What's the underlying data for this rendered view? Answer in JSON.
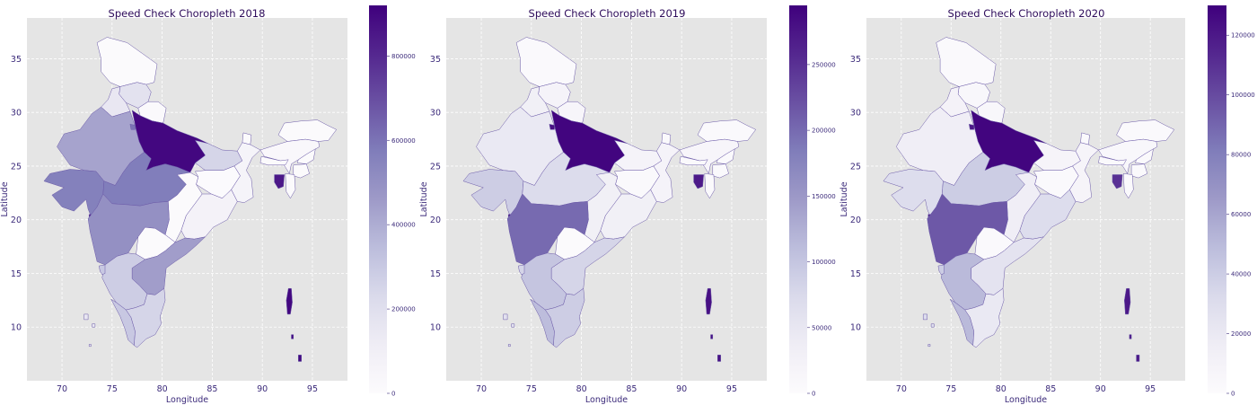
{
  "chart_data": [
    {
      "type": "choropleth",
      "title": "Speed Check Choropleth 2018",
      "xlabel": "Longitude",
      "ylabel": "Latitude",
      "xticks": [
        70,
        75,
        80,
        85,
        90,
        95
      ],
      "yticks": [
        10,
        15,
        20,
        25,
        30,
        35
      ],
      "xlim": [
        66.5,
        98.5
      ],
      "ylim": [
        5.0,
        38.8
      ],
      "grid": true,
      "colormap": "Purples",
      "colorbar": {
        "min": 0,
        "max": 920000,
        "ticks": [
          0,
          200000,
          400000,
          600000,
          800000
        ]
      },
      "regions": [
        {
          "name": "Jammu & Kashmir",
          "value": 8000
        },
        {
          "name": "Himachal Pradesh",
          "value": 180000
        },
        {
          "name": "Punjab",
          "value": 150000
        },
        {
          "name": "Uttarakhand",
          "value": 15000
        },
        {
          "name": "Rajasthan",
          "value": 430000
        },
        {
          "name": "Uttar Pradesh",
          "value": 900000
        },
        {
          "name": "Delhi",
          "value": 600000
        },
        {
          "name": "Gujarat",
          "value": 560000
        },
        {
          "name": "Daman & Diu",
          "value": 850000
        },
        {
          "name": "Madhya Pradesh",
          "value": 570000
        },
        {
          "name": "Bihar",
          "value": 250000
        },
        {
          "name": "Jharkhand",
          "value": 5000
        },
        {
          "name": "West Bengal",
          "value": 60000
        },
        {
          "name": "Chhattisgarh",
          "value": 10000
        },
        {
          "name": "Odisha",
          "value": 70000
        },
        {
          "name": "Maharashtra",
          "value": 500000
        },
        {
          "name": "Telangana",
          "value": 12000
        },
        {
          "name": "Andhra Pradesh",
          "value": 450000
        },
        {
          "name": "Karnataka",
          "value": 280000
        },
        {
          "name": "Goa",
          "value": 300000
        },
        {
          "name": "Kerala",
          "value": 300000
        },
        {
          "name": "Tamil Nadu",
          "value": 250000
        },
        {
          "name": "Sikkim",
          "value": 12000
        },
        {
          "name": "Arunachal Pradesh",
          "value": 8000
        },
        {
          "name": "Assam",
          "value": 30000
        },
        {
          "name": "Meghalaya",
          "value": 8000
        },
        {
          "name": "Nagaland",
          "value": 8000
        },
        {
          "name": "Manipur",
          "value": 8000
        },
        {
          "name": "Mizoram",
          "value": 10000
        },
        {
          "name": "Tripura",
          "value": 850000
        },
        {
          "name": "Lakshadweep",
          "value": 150000
        },
        {
          "name": "Andaman & Nicobar",
          "value": 900000
        }
      ]
    },
    {
      "type": "choropleth",
      "title": "Speed Check Choropleth 2019",
      "xlabel": "Longitude",
      "ylabel": "Latitude",
      "xticks": [
        70,
        75,
        80,
        85,
        90,
        95
      ],
      "yticks": [
        10,
        15,
        20,
        25,
        30,
        35
      ],
      "xlim": [
        66.5,
        98.5
      ],
      "ylim": [
        5.0,
        38.8
      ],
      "grid": true,
      "colormap": "Purples",
      "colorbar": {
        "min": 0,
        "max": 295000,
        "ticks": [
          0,
          50000,
          100000,
          150000,
          200000,
          250000
        ]
      },
      "regions": [
        {
          "name": "Jammu & Kashmir",
          "value": 5000
        },
        {
          "name": "Himachal Pradesh",
          "value": 20000
        },
        {
          "name": "Punjab",
          "value": 30000
        },
        {
          "name": "Uttarakhand",
          "value": 15000
        },
        {
          "name": "Rajasthan",
          "value": 45000
        },
        {
          "name": "Uttar Pradesh",
          "value": 290000
        },
        {
          "name": "Delhi",
          "value": 280000
        },
        {
          "name": "Gujarat",
          "value": 90000
        },
        {
          "name": "Daman & Diu",
          "value": 280000
        },
        {
          "name": "Madhya Pradesh",
          "value": 70000
        },
        {
          "name": "Bihar",
          "value": 20000
        },
        {
          "name": "Jharkhand",
          "value": 5000
        },
        {
          "name": "West Bengal",
          "value": 20000
        },
        {
          "name": "Chhattisgarh",
          "value": 30000
        },
        {
          "name": "Odisha",
          "value": 30000
        },
        {
          "name": "Maharashtra",
          "value": 200000
        },
        {
          "name": "Telangana",
          "value": 3000
        },
        {
          "name": "Andhra Pradesh",
          "value": 80000
        },
        {
          "name": "Karnataka",
          "value": 100000
        },
        {
          "name": "Goa",
          "value": 80000
        },
        {
          "name": "Kerala",
          "value": 110000
        },
        {
          "name": "Tamil Nadu",
          "value": 90000
        },
        {
          "name": "Sikkim",
          "value": 5000
        },
        {
          "name": "Arunachal Pradesh",
          "value": 5000
        },
        {
          "name": "Assam",
          "value": 15000
        },
        {
          "name": "Meghalaya",
          "value": 5000
        },
        {
          "name": "Nagaland",
          "value": 5000
        },
        {
          "name": "Manipur",
          "value": 5000
        },
        {
          "name": "Mizoram",
          "value": 5000
        },
        {
          "name": "Tripura",
          "value": 270000
        },
        {
          "name": "Lakshadweep",
          "value": 60000
        },
        {
          "name": "Andaman & Nicobar",
          "value": 280000
        }
      ]
    },
    {
      "type": "choropleth",
      "title": "Speed Check Choropleth 2020",
      "xlabel": "Longitude",
      "ylabel": "Latitude",
      "xticks": [
        70,
        75,
        80,
        85,
        90,
        95
      ],
      "yticks": [
        10,
        15,
        20,
        25,
        30,
        35
      ],
      "xlim": [
        66.5,
        98.5
      ],
      "ylim": [
        5.0,
        38.8
      ],
      "grid": true,
      "colormap": "Purples",
      "colorbar": {
        "min": 0,
        "max": 130000,
        "ticks": [
          0,
          20000,
          40000,
          60000,
          80000,
          100000,
          120000
        ]
      },
      "regions": [
        {
          "name": "Jammu & Kashmir",
          "value": 2000
        },
        {
          "name": "Himachal Pradesh",
          "value": 5000
        },
        {
          "name": "Punjab",
          "value": 10000
        },
        {
          "name": "Uttarakhand",
          "value": 5000
        },
        {
          "name": "Rajasthan",
          "value": 15000
        },
        {
          "name": "Uttar Pradesh",
          "value": 128000
        },
        {
          "name": "Delhi",
          "value": 120000
        },
        {
          "name": "Gujarat",
          "value": 30000
        },
        {
          "name": "Daman & Diu",
          "value": 120000
        },
        {
          "name": "Madhya Pradesh",
          "value": 40000
        },
        {
          "name": "Bihar",
          "value": 8000
        },
        {
          "name": "Jharkhand",
          "value": 2000
        },
        {
          "name": "West Bengal",
          "value": 8000
        },
        {
          "name": "Chhattisgarh",
          "value": 15000
        },
        {
          "name": "Odisha",
          "value": 30000
        },
        {
          "name": "Maharashtra",
          "value": 95000
        },
        {
          "name": "Telangana",
          "value": 2000
        },
        {
          "name": "Andhra Pradesh",
          "value": 25000
        },
        {
          "name": "Karnataka",
          "value": 50000
        },
        {
          "name": "Goa",
          "value": 40000
        },
        {
          "name": "Kerala",
          "value": 50000
        },
        {
          "name": "Tamil Nadu",
          "value": 20000
        },
        {
          "name": "Sikkim",
          "value": 2000
        },
        {
          "name": "Arunachal Pradesh",
          "value": 2000
        },
        {
          "name": "Assam",
          "value": 5000
        },
        {
          "name": "Meghalaya",
          "value": 2000
        },
        {
          "name": "Nagaland",
          "value": 2000
        },
        {
          "name": "Manipur",
          "value": 2000
        },
        {
          "name": "Mizoram",
          "value": 2000
        },
        {
          "name": "Tripura",
          "value": 110000
        },
        {
          "name": "Lakshadweep",
          "value": 30000
        },
        {
          "name": "Andaman & Nicobar",
          "value": 120000
        }
      ]
    }
  ]
}
